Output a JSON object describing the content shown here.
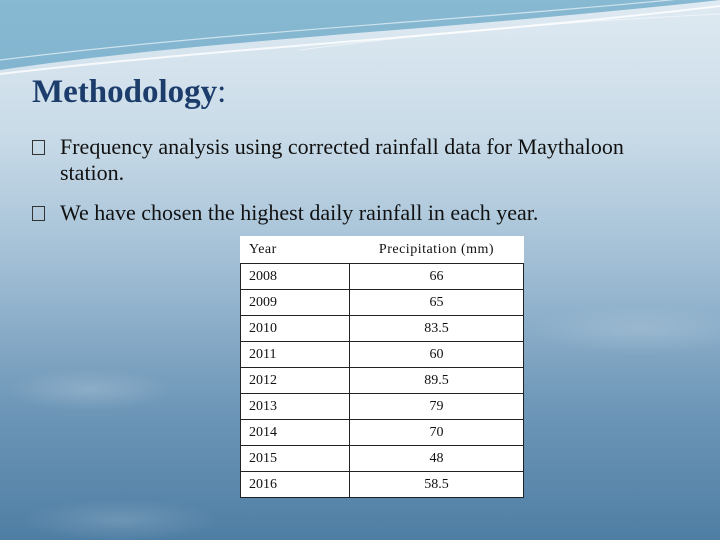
{
  "slide": {
    "title": "Methodology",
    "title_punctuation": ":",
    "bullets": [
      "Frequency analysis using corrected rainfall data for Maythaloon station.",
      "We have chosen the highest daily rainfall in each year."
    ],
    "table": {
      "header": [
        "Year",
        "Precipitation (mm)"
      ],
      "rows": [
        [
          2008,
          66
        ],
        [
          2009,
          65
        ],
        [
          2010,
          83.5
        ],
        [
          2011,
          60
        ],
        [
          2012,
          89.5
        ],
        [
          2013,
          79
        ],
        [
          2014,
          70
        ],
        [
          2015,
          48
        ],
        [
          2016,
          58.5
        ]
      ]
    }
  }
}
